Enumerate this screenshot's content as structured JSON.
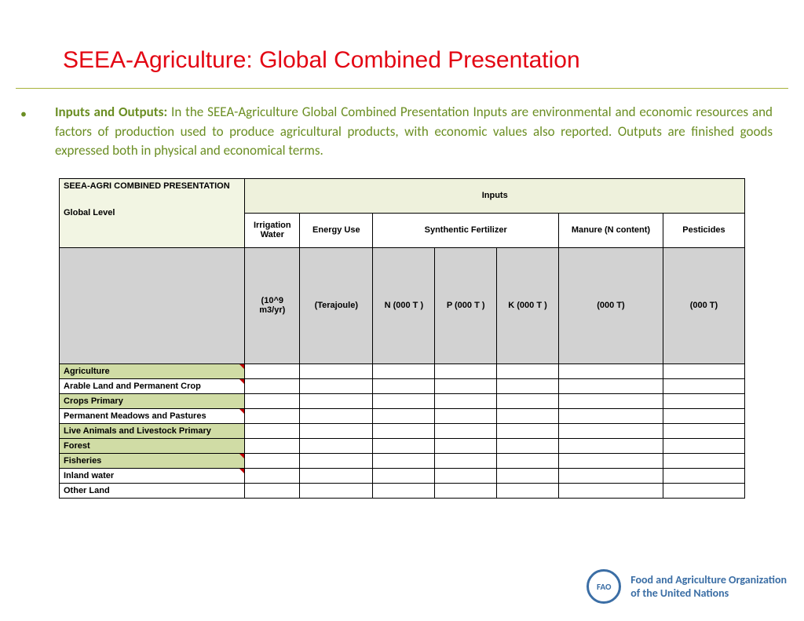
{
  "title": "SEEA-Agriculture: Global Combined Presentation",
  "body": {
    "lead": "Inputs and Outputs:",
    "text": " In the SEEA-Agriculture Global Combined Presentation Inputs are environmental and economic resources and factors of production used to produce agricultural products, with economic values also reported. Outputs are finished goods expressed both in physical and economical terms."
  },
  "colors": {
    "title": "#e30613",
    "body_text": "#6b8e23",
    "rule": "#a7b23a",
    "header_light": "#eef1dc",
    "header_corner": "#f2f5e3",
    "unit_bg": "#d2d2d2",
    "shade_row": "#d0dca5",
    "fao_blue": "#3b6ea5"
  },
  "table": {
    "corner": {
      "line1": "SEEA-AGRI COMBINED PRESENTATION",
      "line2": "Global Level"
    },
    "super_header": "Inputs",
    "categories": [
      {
        "label": "Irrigation Water",
        "span": 1
      },
      {
        "label": "Energy Use",
        "span": 1
      },
      {
        "label": "Synthentic Fertilizer",
        "span": 3
      },
      {
        "label": "Manure (N content)",
        "span": 1
      },
      {
        "label": "Pesticides",
        "span": 1
      }
    ],
    "units": [
      "(10^9 m3/yr)",
      "(Terajoule)",
      "N (000 T )",
      "P (000 T )",
      "K (000 T )",
      "(000 T)",
      "(000 T)"
    ],
    "unit_col_widths": [
      70,
      94,
      80,
      80,
      80,
      135,
      105
    ],
    "rows": [
      {
        "label": "Agriculture",
        "shade": true,
        "mark": true
      },
      {
        "label": "Arable Land and Permanent Crop",
        "shade": false,
        "mark": true
      },
      {
        "label": "Crops Primary",
        "shade": true,
        "mark": false
      },
      {
        "label": "Permanent Meadows and Pastures",
        "shade": false,
        "mark": true
      },
      {
        "label": "Live Animals and Livestock Primary",
        "shade": true,
        "mark": false
      },
      {
        "label": "Forest",
        "shade": true,
        "mark": false
      },
      {
        "label": "Fisheries",
        "shade": true,
        "mark": true
      },
      {
        "label": "Inland water",
        "shade": false,
        "mark": true
      },
      {
        "label": "Other Land",
        "shade": false,
        "mark": false
      }
    ]
  },
  "footer": {
    "abbr": "FAO",
    "line1": "Food and Agriculture Organization",
    "line2": "of the United Nations"
  }
}
